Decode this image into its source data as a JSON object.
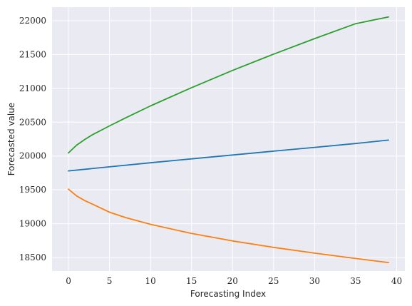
{
  "chart_data": {
    "type": "line",
    "title": "",
    "xlabel": "Forecasting Index",
    "ylabel": "Forecasted value",
    "xlim": [
      -2,
      41
    ],
    "ylim": [
      18300,
      22200
    ],
    "grid": true,
    "xticks": [
      0,
      5,
      10,
      15,
      20,
      25,
      30,
      35,
      40
    ],
    "yticks": [
      18500,
      19000,
      19500,
      20000,
      20500,
      21000,
      21500,
      22000
    ],
    "series": [
      {
        "color": "#1f77b4",
        "x": [
          0,
          5,
          10,
          15,
          20,
          25,
          30,
          35,
          39
        ],
        "y": [
          19780,
          19840,
          19900,
          19958,
          20015,
          20072,
          20128,
          20185,
          20235
        ]
      },
      {
        "color": "#ff7f0e",
        "x": [
          0,
          1,
          2,
          3,
          5,
          7,
          10,
          15,
          20,
          25,
          30,
          35,
          39
        ],
        "y": [
          19510,
          19410,
          19340,
          19285,
          19170,
          19090,
          18990,
          18855,
          18745,
          18650,
          18565,
          18485,
          18425
        ]
      },
      {
        "color": "#2ca02c",
        "x": [
          0,
          1,
          2,
          3,
          5,
          7,
          10,
          15,
          20,
          25,
          30,
          35,
          39
        ],
        "y": [
          20045,
          20160,
          20245,
          20320,
          20445,
          20565,
          20740,
          21010,
          21265,
          21505,
          21735,
          21955,
          22055
        ]
      }
    ]
  }
}
